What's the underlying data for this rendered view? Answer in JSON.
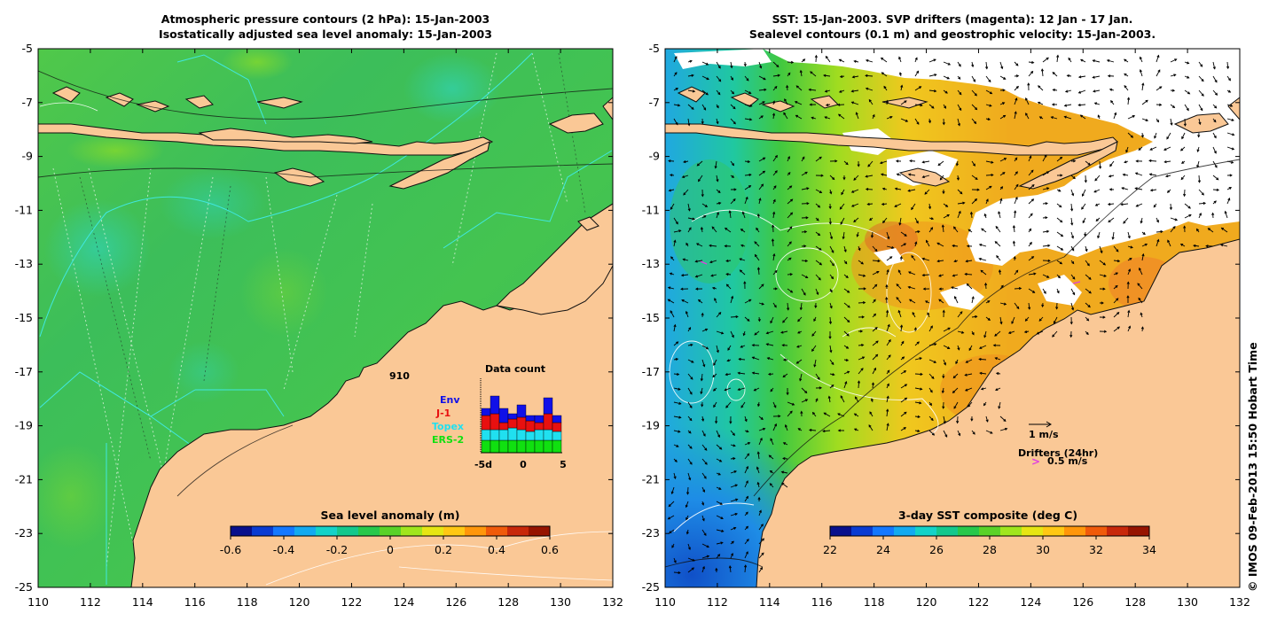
{
  "left_panel": {
    "title_line1": "Atmospheric pressure contours (2 hPa): 15-Jan-2003",
    "title_line2": "Isostatically adjusted sea level anomaly: 15-Jan-2003",
    "colorbar": {
      "title": "Sea level anomaly (m)",
      "ticks": [
        "-0.6",
        "-0.4",
        "-0.2",
        "0",
        "0.2",
        "0.4",
        "0.6"
      ],
      "colors": [
        "#08108c",
        "#0a3cd2",
        "#1478ff",
        "#14aaf0",
        "#14d2c8",
        "#14c88c",
        "#28c84b",
        "#5ad228",
        "#a0e61e",
        "#e6e614",
        "#ffc814",
        "#ff960a",
        "#f05a0a",
        "#c8280a",
        "#961400"
      ]
    },
    "data_count": {
      "title": "Data count",
      "total": "910",
      "legend": [
        {
          "label": "Env",
          "color": "#1010e8"
        },
        {
          "label": "J-1",
          "color": "#e81010"
        },
        {
          "label": "Topex",
          "color": "#20e0f0"
        },
        {
          "label": "ERS-2",
          "color": "#10e010"
        }
      ],
      "x_ticks": [
        "-5d",
        "0",
        "5"
      ],
      "bars": [
        {
          "ers": 14,
          "topex": 12,
          "j1": 16,
          "env": 8
        },
        {
          "ers": 14,
          "topex": 12,
          "j1": 18,
          "env": 20
        },
        {
          "ers": 14,
          "topex": 12,
          "j1": 8,
          "env": 16
        },
        {
          "ers": 14,
          "topex": 14,
          "j1": 10,
          "env": 6
        },
        {
          "ers": 14,
          "topex": 12,
          "j1": 14,
          "env": 14
        },
        {
          "ers": 14,
          "topex": 10,
          "j1": 12,
          "env": 6
        },
        {
          "ers": 14,
          "topex": 12,
          "j1": 8,
          "env": 8
        },
        {
          "ers": 14,
          "topex": 12,
          "j1": 18,
          "env": 18
        },
        {
          "ers": 14,
          "topex": 10,
          "j1": 10,
          "env": 8
        }
      ]
    }
  },
  "right_panel": {
    "title_line1": "SST: 15-Jan-2003. SVP drifters (magenta): 12 Jan - 17 Jan.",
    "title_line2": "Sealevel contours (0.1 m) and geostrophic velocity: 15-Jan-2003.",
    "colorbar": {
      "title": "3-day SST composite (deg C)",
      "ticks": [
        "22",
        "24",
        "26",
        "28",
        "30",
        "32",
        "34"
      ],
      "colors": [
        "#08108c",
        "#0a3cd2",
        "#1478ff",
        "#14aaf0",
        "#14d2c8",
        "#14c88c",
        "#28c84b",
        "#5ad228",
        "#a0e61e",
        "#e6e614",
        "#ffc814",
        "#ff960a",
        "#f05a0a",
        "#c8280a",
        "#961400"
      ]
    },
    "scale_arrow_label": "1 m/s",
    "drifters_label": "Drifters (24hr)",
    "drifter_speed_label": "0.5 m/s",
    "drifter_marker": ">"
  },
  "axes": {
    "lat_ticks": [
      "-5",
      "-7",
      "-9",
      "-11",
      "-13",
      "-15",
      "-17",
      "-19",
      "-21",
      "-23",
      "-25"
    ],
    "lon_ticks": [
      "110",
      "112",
      "114",
      "116",
      "118",
      "120",
      "122",
      "124",
      "126",
      "128",
      "130",
      "132"
    ],
    "lat_range": [
      -25,
      -5
    ],
    "lon_range": [
      110,
      132
    ]
  },
  "credit": "© IMOS 09-Feb-2013 15:50 Hobart Time",
  "colors": {
    "land": "#fac896",
    "ocean_left": "#3cc850",
    "ocean_right": "#f0b41e",
    "contour_cyan": "#40e8e0",
    "drifter": "#e040e0"
  }
}
